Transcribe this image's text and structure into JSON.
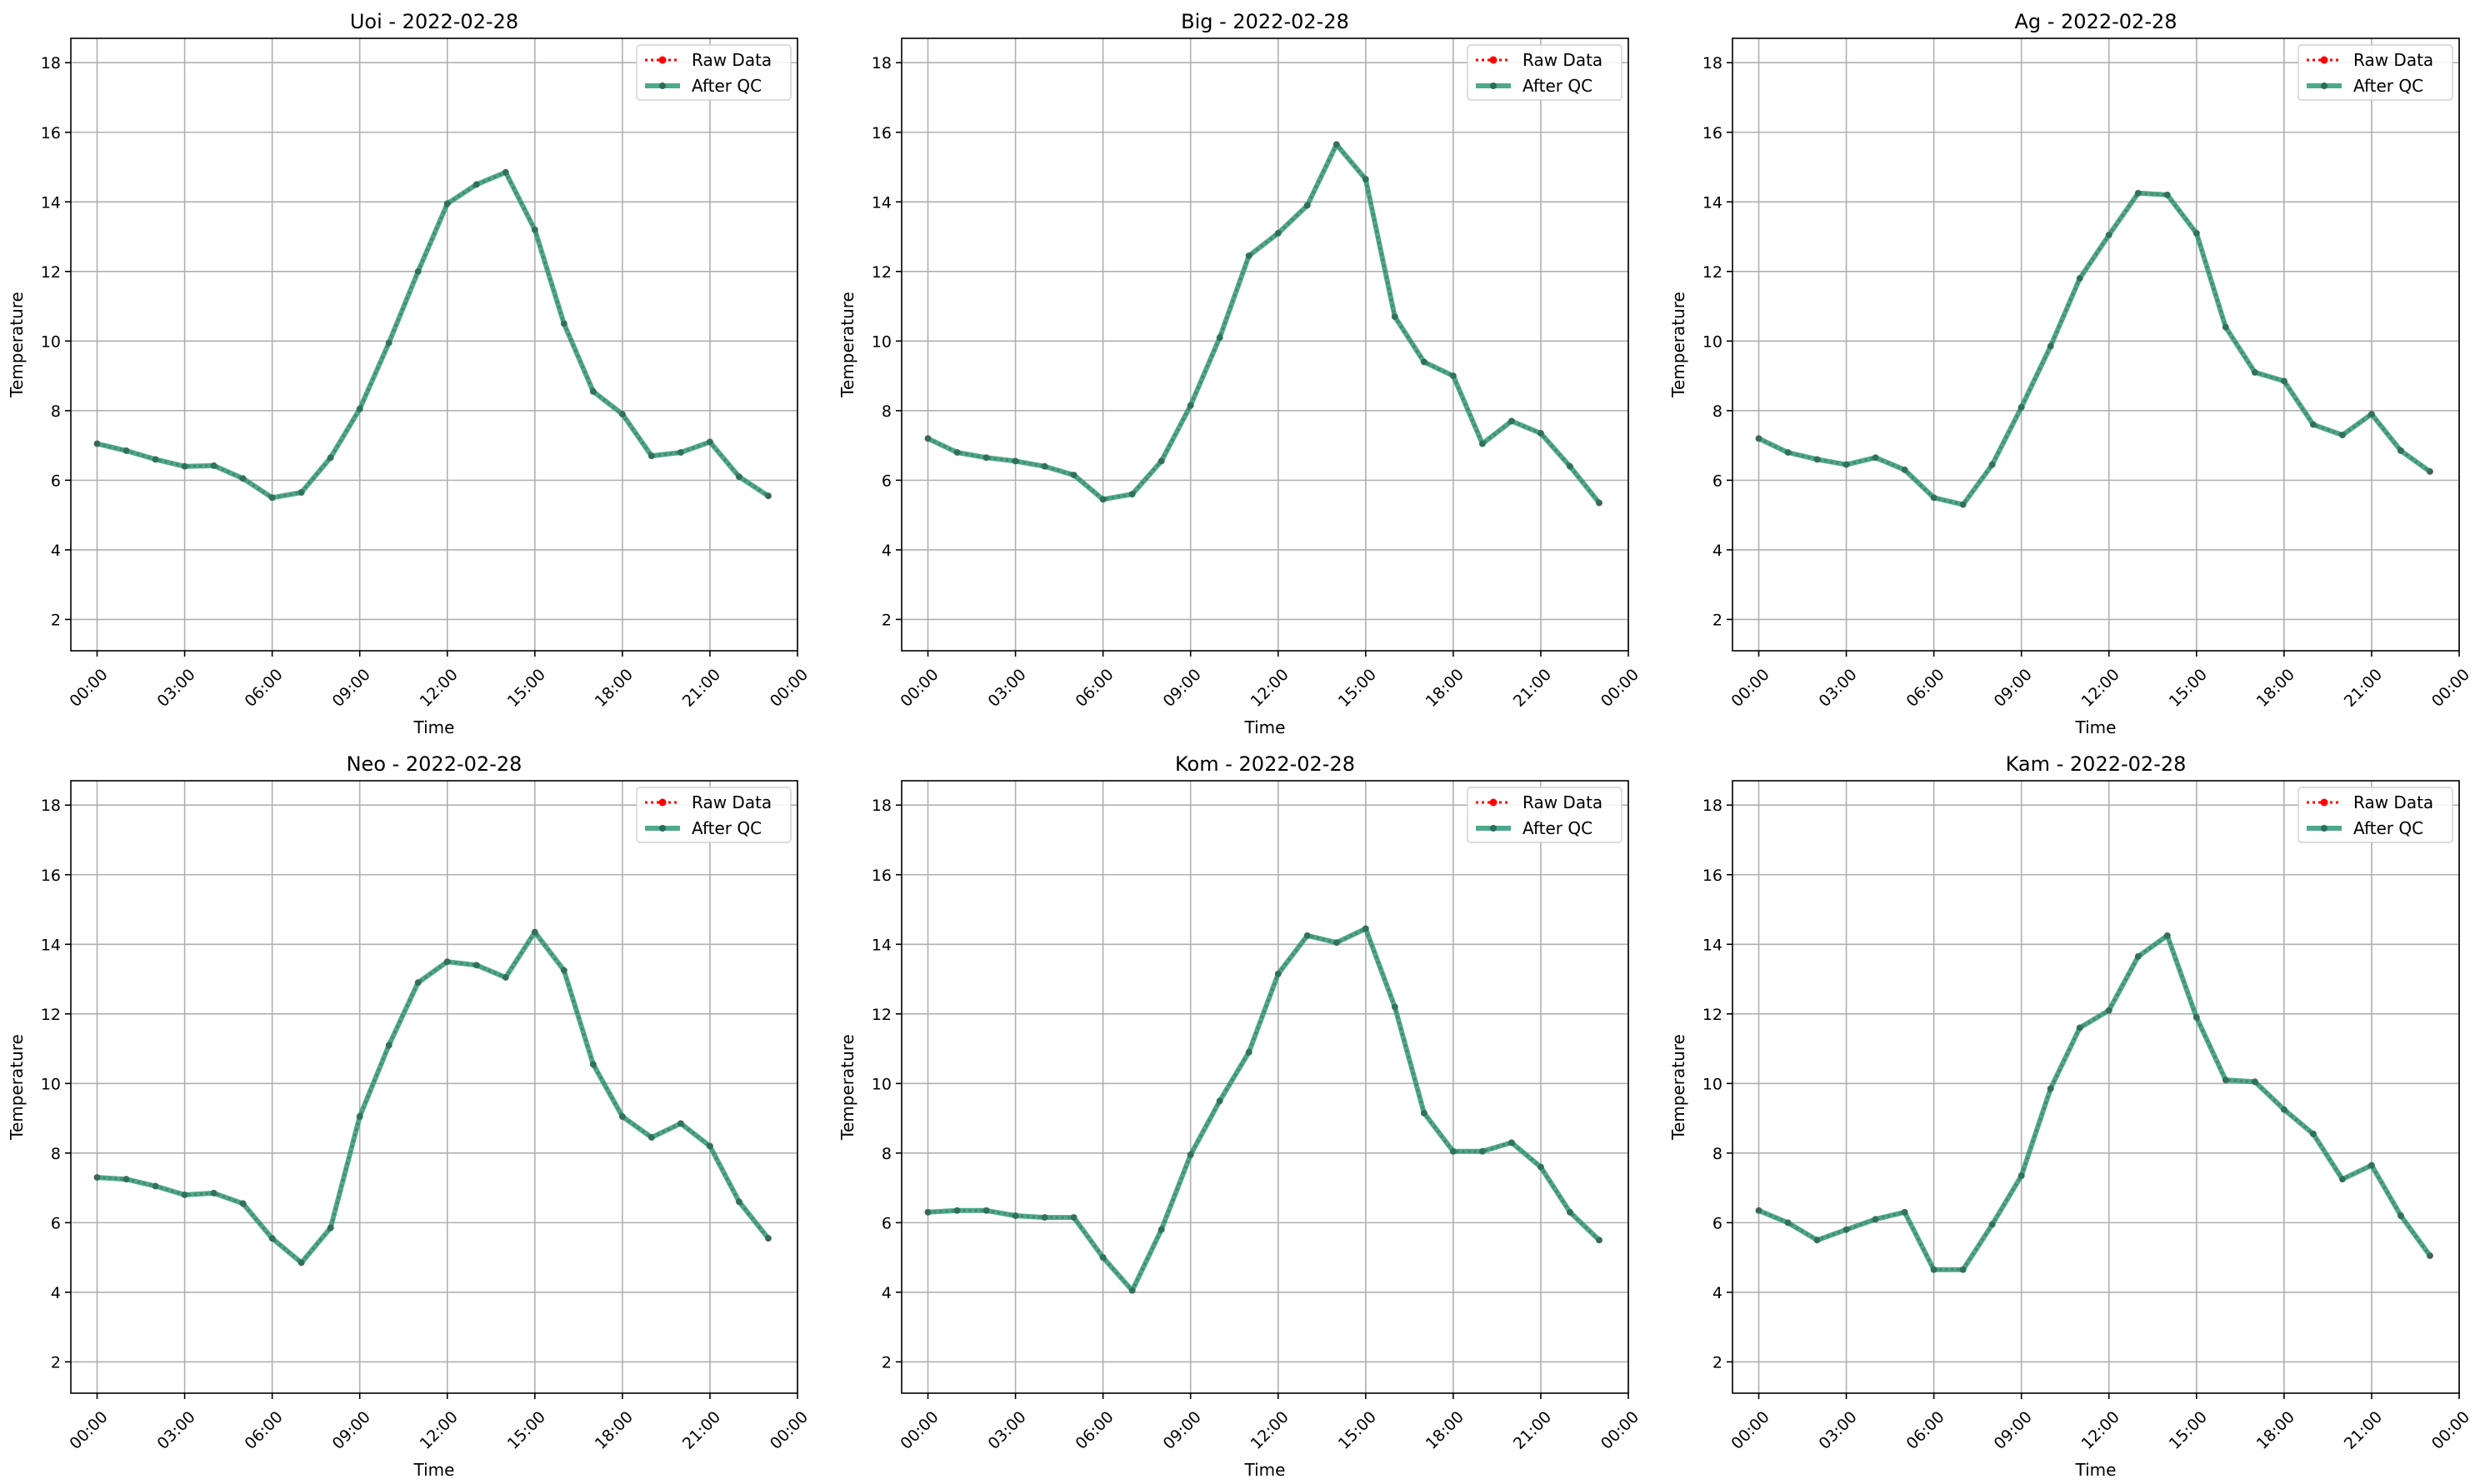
{
  "figure": {
    "background": "#ffffff"
  },
  "chart_data": [
    {
      "type": "line",
      "title": "Uoi - 2022-02-28",
      "xlabel": "Time",
      "ylabel": "Temperature",
      "xlim": [
        -0.9,
        24.0
      ],
      "ylim": [
        1.1,
        18.7
      ],
      "xticks": [
        0,
        3,
        6,
        9,
        12,
        15,
        18,
        21,
        24
      ],
      "xtick_labels": [
        "00:00",
        "03:00",
        "06:00",
        "09:00",
        "12:00",
        "15:00",
        "18:00",
        "21:00",
        "00:00"
      ],
      "yticks": [
        2,
        4,
        6,
        8,
        10,
        12,
        14,
        16,
        18
      ],
      "grid": true,
      "legend": "top-right",
      "x": [
        0,
        1,
        2,
        3,
        4,
        5,
        6,
        7,
        8,
        9,
        10,
        11,
        12,
        13,
        14,
        15,
        16,
        17,
        18,
        19,
        20,
        21,
        22,
        23
      ],
      "series": [
        {
          "name": "Raw Data",
          "color": "#ff0000",
          "style": "dotted",
          "values": [
            7.05,
            6.85,
            6.6,
            6.4,
            6.42,
            6.05,
            5.5,
            5.65,
            6.65,
            8.05,
            9.95,
            12.0,
            13.95,
            14.5,
            14.85,
            13.2,
            10.5,
            8.55,
            7.9,
            6.7,
            6.8,
            7.1,
            6.1,
            5.55
          ]
        },
        {
          "name": "After QC",
          "color": "#2e9a78",
          "style": "solid",
          "values": [
            7.05,
            6.85,
            6.6,
            6.4,
            6.42,
            6.05,
            5.5,
            5.65,
            6.65,
            8.05,
            9.95,
            12.0,
            13.95,
            14.5,
            14.85,
            13.2,
            10.5,
            8.55,
            7.9,
            6.7,
            6.8,
            7.1,
            6.1,
            5.55
          ]
        }
      ]
    },
    {
      "type": "line",
      "title": "Big - 2022-02-28",
      "xlabel": "Time",
      "ylabel": "Temperature",
      "xlim": [
        -0.9,
        24.0
      ],
      "ylim": [
        1.1,
        18.7
      ],
      "xticks": [
        0,
        3,
        6,
        9,
        12,
        15,
        18,
        21,
        24
      ],
      "xtick_labels": [
        "00:00",
        "03:00",
        "06:00",
        "09:00",
        "12:00",
        "15:00",
        "18:00",
        "21:00",
        "00:00"
      ],
      "yticks": [
        2,
        4,
        6,
        8,
        10,
        12,
        14,
        16,
        18
      ],
      "grid": true,
      "legend": "top-right",
      "x": [
        0,
        1,
        2,
        3,
        4,
        5,
        6,
        7,
        8,
        9,
        10,
        11,
        12,
        13,
        14,
        15,
        16,
        17,
        18,
        19,
        20,
        21,
        22,
        23
      ],
      "series": [
        {
          "name": "Raw Data",
          "color": "#ff0000",
          "style": "dotted",
          "values": [
            7.2,
            6.8,
            6.65,
            6.55,
            6.4,
            6.15,
            5.45,
            5.6,
            6.55,
            8.15,
            10.1,
            12.45,
            13.1,
            13.9,
            15.65,
            14.65,
            10.7,
            9.4,
            9.0,
            7.05,
            7.7,
            7.35,
            6.4,
            5.35
          ]
        },
        {
          "name": "After QC",
          "color": "#2e9a78",
          "style": "solid",
          "values": [
            7.2,
            6.8,
            6.65,
            6.55,
            6.4,
            6.15,
            5.45,
            5.6,
            6.55,
            8.15,
            10.1,
            12.45,
            13.1,
            13.9,
            15.65,
            14.65,
            10.7,
            9.4,
            9.0,
            7.05,
            7.7,
            7.35,
            6.4,
            5.35
          ]
        }
      ]
    },
    {
      "type": "line",
      "title": "Ag - 2022-02-28",
      "xlabel": "Time",
      "ylabel": "Temperature",
      "xlim": [
        -0.9,
        24.0
      ],
      "ylim": [
        1.1,
        18.7
      ],
      "xticks": [
        0,
        3,
        6,
        9,
        12,
        15,
        18,
        21,
        24
      ],
      "xtick_labels": [
        "00:00",
        "03:00",
        "06:00",
        "09:00",
        "12:00",
        "15:00",
        "18:00",
        "21:00",
        "00:00"
      ],
      "yticks": [
        2,
        4,
        6,
        8,
        10,
        12,
        14,
        16,
        18
      ],
      "grid": true,
      "legend": "top-right",
      "x": [
        0,
        1,
        2,
        3,
        4,
        5,
        6,
        7,
        8,
        9,
        10,
        11,
        12,
        13,
        14,
        15,
        16,
        17,
        18,
        19,
        20,
        21,
        22,
        23
      ],
      "series": [
        {
          "name": "Raw Data",
          "color": "#ff0000",
          "style": "dotted",
          "values": [
            7.2,
            6.8,
            6.6,
            6.45,
            6.65,
            6.3,
            5.5,
            5.3,
            6.45,
            8.1,
            9.85,
            11.8,
            13.05,
            14.25,
            14.2,
            13.1,
            10.4,
            9.1,
            8.85,
            7.6,
            7.3,
            7.9,
            6.85,
            6.25
          ]
        },
        {
          "name": "After QC",
          "color": "#2e9a78",
          "style": "solid",
          "values": [
            7.2,
            6.8,
            6.6,
            6.45,
            6.65,
            6.3,
            5.5,
            5.3,
            6.45,
            8.1,
            9.85,
            11.8,
            13.05,
            14.25,
            14.2,
            13.1,
            10.4,
            9.1,
            8.85,
            7.6,
            7.3,
            7.9,
            6.85,
            6.25
          ]
        }
      ]
    },
    {
      "type": "line",
      "title": "Neo - 2022-02-28",
      "xlabel": "Time",
      "ylabel": "Temperature",
      "xlim": [
        -0.9,
        24.0
      ],
      "ylim": [
        1.1,
        18.7
      ],
      "xticks": [
        0,
        3,
        6,
        9,
        12,
        15,
        18,
        21,
        24
      ],
      "xtick_labels": [
        "00:00",
        "03:00",
        "06:00",
        "09:00",
        "12:00",
        "15:00",
        "18:00",
        "21:00",
        "00:00"
      ],
      "yticks": [
        2,
        4,
        6,
        8,
        10,
        12,
        14,
        16,
        18
      ],
      "grid": true,
      "legend": "top-right",
      "x": [
        0,
        1,
        2,
        3,
        4,
        5,
        6,
        7,
        8,
        9,
        10,
        11,
        12,
        13,
        14,
        15,
        16,
        17,
        18,
        19,
        20,
        21,
        22,
        23
      ],
      "series": [
        {
          "name": "Raw Data",
          "color": "#ff0000",
          "style": "dotted",
          "values": [
            7.3,
            7.25,
            7.05,
            6.8,
            6.85,
            6.55,
            5.55,
            4.85,
            5.85,
            9.05,
            11.1,
            12.9,
            13.5,
            13.4,
            13.05,
            14.35,
            13.25,
            10.55,
            9.05,
            8.45,
            8.85,
            8.2,
            6.6,
            5.55
          ]
        },
        {
          "name": "After QC",
          "color": "#2e9a78",
          "style": "solid",
          "values": [
            7.3,
            7.25,
            7.05,
            6.8,
            6.85,
            6.55,
            5.55,
            4.85,
            5.85,
            9.05,
            11.1,
            12.9,
            13.5,
            13.4,
            13.05,
            14.35,
            13.25,
            10.55,
            9.05,
            8.45,
            8.85,
            8.2,
            6.6,
            5.55
          ]
        }
      ]
    },
    {
      "type": "line",
      "title": "Kom - 2022-02-28",
      "xlabel": "Time",
      "ylabel": "Temperature",
      "xlim": [
        -0.9,
        24.0
      ],
      "ylim": [
        1.1,
        18.7
      ],
      "xticks": [
        0,
        3,
        6,
        9,
        12,
        15,
        18,
        21,
        24
      ],
      "xtick_labels": [
        "00:00",
        "03:00",
        "06:00",
        "09:00",
        "12:00",
        "15:00",
        "18:00",
        "21:00",
        "00:00"
      ],
      "yticks": [
        2,
        4,
        6,
        8,
        10,
        12,
        14,
        16,
        18
      ],
      "grid": true,
      "legend": "top-right",
      "x": [
        0,
        1,
        2,
        3,
        4,
        5,
        6,
        7,
        8,
        9,
        10,
        11,
        12,
        13,
        14,
        15,
        16,
        17,
        18,
        19,
        20,
        21,
        22,
        23
      ],
      "series": [
        {
          "name": "Raw Data",
          "color": "#ff0000",
          "style": "dotted",
          "values": [
            6.3,
            6.35,
            6.35,
            6.2,
            6.15,
            6.15,
            5.0,
            4.05,
            5.8,
            7.95,
            9.5,
            10.9,
            13.15,
            14.25,
            14.05,
            14.45,
            12.2,
            9.15,
            8.05,
            8.05,
            8.3,
            7.6,
            6.3,
            5.5
          ]
        },
        {
          "name": "After QC",
          "color": "#2e9a78",
          "style": "solid",
          "values": [
            6.3,
            6.35,
            6.35,
            6.2,
            6.15,
            6.15,
            5.0,
            4.05,
            5.8,
            7.95,
            9.5,
            10.9,
            13.15,
            14.25,
            14.05,
            14.45,
            12.2,
            9.15,
            8.05,
            8.05,
            8.3,
            7.6,
            6.3,
            5.5
          ]
        }
      ]
    },
    {
      "type": "line",
      "title": "Kam - 2022-02-28",
      "xlabel": "Time",
      "ylabel": "Temperature",
      "xlim": [
        -0.9,
        24.0
      ],
      "ylim": [
        1.1,
        18.7
      ],
      "xticks": [
        0,
        3,
        6,
        9,
        12,
        15,
        18,
        21,
        24
      ],
      "xtick_labels": [
        "00:00",
        "03:00",
        "06:00",
        "09:00",
        "12:00",
        "15:00",
        "18:00",
        "21:00",
        "00:00"
      ],
      "yticks": [
        2,
        4,
        6,
        8,
        10,
        12,
        14,
        16,
        18
      ],
      "grid": true,
      "legend": "top-right",
      "x": [
        0,
        1,
        2,
        3,
        4,
        5,
        6,
        7,
        8,
        9,
        10,
        11,
        12,
        13,
        14,
        15,
        16,
        17,
        18,
        19,
        20,
        21,
        22,
        23
      ],
      "series": [
        {
          "name": "Raw Data",
          "color": "#ff0000",
          "style": "dotted",
          "values": [
            6.35,
            6.0,
            5.5,
            5.8,
            6.1,
            6.3,
            4.65,
            4.65,
            5.95,
            7.35,
            9.85,
            11.6,
            12.1,
            13.65,
            14.25,
            11.9,
            10.1,
            10.05,
            9.25,
            8.55,
            7.25,
            7.65,
            6.2,
            5.05
          ]
        },
        {
          "name": "After QC",
          "color": "#2e9a78",
          "style": "solid",
          "values": [
            6.35,
            6.0,
            5.5,
            5.8,
            6.1,
            6.3,
            4.65,
            4.65,
            5.95,
            7.35,
            9.85,
            11.6,
            12.1,
            13.65,
            14.25,
            11.9,
            10.1,
            10.05,
            9.25,
            8.55,
            7.25,
            7.65,
            6.2,
            5.05
          ]
        }
      ]
    }
  ]
}
